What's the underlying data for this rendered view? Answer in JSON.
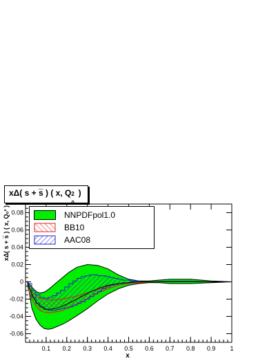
{
  "title_main": "xΔ( s + s̅ ) ( x, Q",
  "title_sup": "2",
  "title_sub": "0",
  "title_tail": " )",
  "chart_data": {
    "type": "area",
    "title": "xΔ( s + s̅ ) ( x, Q₀² )",
    "xlabel": "x",
    "ylabel": "xΔ( s + s̅ ) ( x, Q₀² )",
    "xlim": [
      0.0,
      1.0
    ],
    "ylim": [
      -0.07,
      0.09
    ],
    "x_ticks": [
      0.1,
      0.2,
      0.3,
      0.4,
      0.5,
      0.6,
      0.7,
      0.8,
      0.9,
      1.0
    ],
    "x_tick_labels": [
      "0.1",
      "0.2",
      "0.3",
      "0.4",
      "0.5",
      "0.6",
      "0.7",
      "0.8",
      "0.9",
      "1"
    ],
    "y_ticks": [
      -0.06,
      -0.04,
      -0.02,
      0.0,
      0.02,
      0.04,
      0.06,
      0.08
    ],
    "y_tick_labels": [
      "-0.06",
      "-0.04",
      "-0.02",
      "0",
      "0.02",
      "0.04",
      "0.06",
      "0.08"
    ],
    "legend_position": "top-left",
    "series": [
      {
        "name": "NNPDFpol1.0",
        "color": "#00ee00",
        "x": [
          0.01,
          0.03,
          0.05,
          0.07,
          0.09,
          0.11,
          0.13,
          0.15,
          0.18,
          0.21,
          0.25,
          0.3,
          0.35,
          0.4,
          0.45,
          0.5,
          0.55,
          0.6,
          0.65,
          0.7,
          0.75,
          0.8,
          0.85,
          0.9,
          0.95,
          1.0
        ],
        "upper": [
          0.0,
          -0.006,
          -0.011,
          -0.013,
          -0.012,
          -0.009,
          -0.005,
          -0.001,
          0.005,
          0.011,
          0.017,
          0.02,
          0.019,
          0.015,
          0.008,
          0.003,
          0.001,
          0.001,
          0.002,
          0.003,
          0.003,
          0.003,
          0.002,
          0.001,
          0.0005,
          0.0
        ],
        "lower": [
          0.0,
          -0.03,
          -0.043,
          -0.05,
          -0.054,
          -0.055,
          -0.054,
          -0.052,
          -0.049,
          -0.045,
          -0.039,
          -0.031,
          -0.022,
          -0.014,
          -0.008,
          -0.004,
          -0.002,
          -0.001,
          -0.001,
          -0.002,
          -0.002,
          -0.002,
          -0.0015,
          -0.001,
          -0.0005,
          0.0
        ]
      },
      {
        "name": "BB10",
        "color": "#e02020",
        "x": [
          0.01,
          0.03,
          0.05,
          0.07,
          0.09,
          0.11,
          0.14,
          0.17,
          0.2,
          0.24,
          0.28,
          0.32,
          0.36,
          0.4,
          0.45,
          0.5,
          0.55,
          0.6,
          0.65,
          0.7,
          0.8,
          0.9,
          1.0
        ],
        "upper": [
          -0.004,
          -0.011,
          -0.016,
          -0.019,
          -0.02,
          -0.021,
          -0.021,
          -0.02,
          -0.019,
          -0.017,
          -0.014,
          -0.011,
          -0.008,
          -0.005,
          -0.002,
          -0.001,
          0.0,
          0.0,
          0.0,
          0.0,
          0.0,
          0.0,
          0.0
        ],
        "lower": [
          -0.006,
          -0.019,
          -0.028,
          -0.033,
          -0.035,
          -0.036,
          -0.035,
          -0.034,
          -0.031,
          -0.027,
          -0.022,
          -0.017,
          -0.012,
          -0.008,
          -0.004,
          -0.002,
          -0.001,
          0.0,
          0.0,
          0.0,
          0.0,
          0.0,
          0.0
        ]
      },
      {
        "name": "AAC08",
        "color": "#2020d0",
        "step": true,
        "x": [
          0.01,
          0.03,
          0.05,
          0.07,
          0.09,
          0.11,
          0.13,
          0.15,
          0.17,
          0.19,
          0.21,
          0.23,
          0.25,
          0.27,
          0.29,
          0.31,
          0.33,
          0.35,
          0.37,
          0.39,
          0.41,
          0.43,
          0.45,
          0.47,
          0.49,
          0.51,
          0.53,
          0.55,
          0.57,
          0.59,
          0.65,
          0.75,
          0.85,
          0.95,
          1.0
        ],
        "upper": [
          -0.002,
          -0.01,
          -0.015,
          -0.018,
          -0.019,
          -0.018,
          -0.016,
          -0.013,
          -0.01,
          -0.006,
          -0.002,
          0.001,
          0.004,
          0.006,
          0.007,
          0.008,
          0.008,
          0.007,
          0.007,
          0.006,
          0.005,
          0.004,
          0.003,
          0.002,
          0.002,
          0.001,
          0.001,
          0.0,
          0.0,
          0.0,
          0.0,
          0.0,
          0.0,
          0.0,
          0.0
        ],
        "lower": [
          -0.005,
          -0.018,
          -0.025,
          -0.029,
          -0.032,
          -0.033,
          -0.033,
          -0.032,
          -0.031,
          -0.03,
          -0.029,
          -0.027,
          -0.025,
          -0.023,
          -0.02,
          -0.017,
          -0.014,
          -0.011,
          -0.008,
          -0.006,
          -0.004,
          -0.003,
          -0.002,
          -0.001,
          -0.001,
          0.0,
          0.0,
          0.0,
          0.0,
          0.0,
          0.0,
          0.0,
          0.0,
          0.0,
          0.0
        ]
      }
    ],
    "central_curves": [
      {
        "series": "NNPDFpol1.0",
        "x": [
          0.01,
          0.03,
          0.05,
          0.07,
          0.09,
          0.11,
          0.14,
          0.17,
          0.2,
          0.24,
          0.28,
          0.32,
          0.36,
          0.4,
          0.45,
          0.5,
          0.55,
          0.6,
          0.7,
          0.8,
          0.9,
          1.0
        ],
        "y": [
          -0.001,
          -0.014,
          -0.023,
          -0.028,
          -0.031,
          -0.032,
          -0.031,
          -0.029,
          -0.026,
          -0.021,
          -0.016,
          -0.011,
          -0.007,
          -0.004,
          -0.002,
          -0.001,
          0.0,
          0.0,
          0.0005,
          0.0005,
          0.0,
          0.0
        ]
      }
    ]
  }
}
